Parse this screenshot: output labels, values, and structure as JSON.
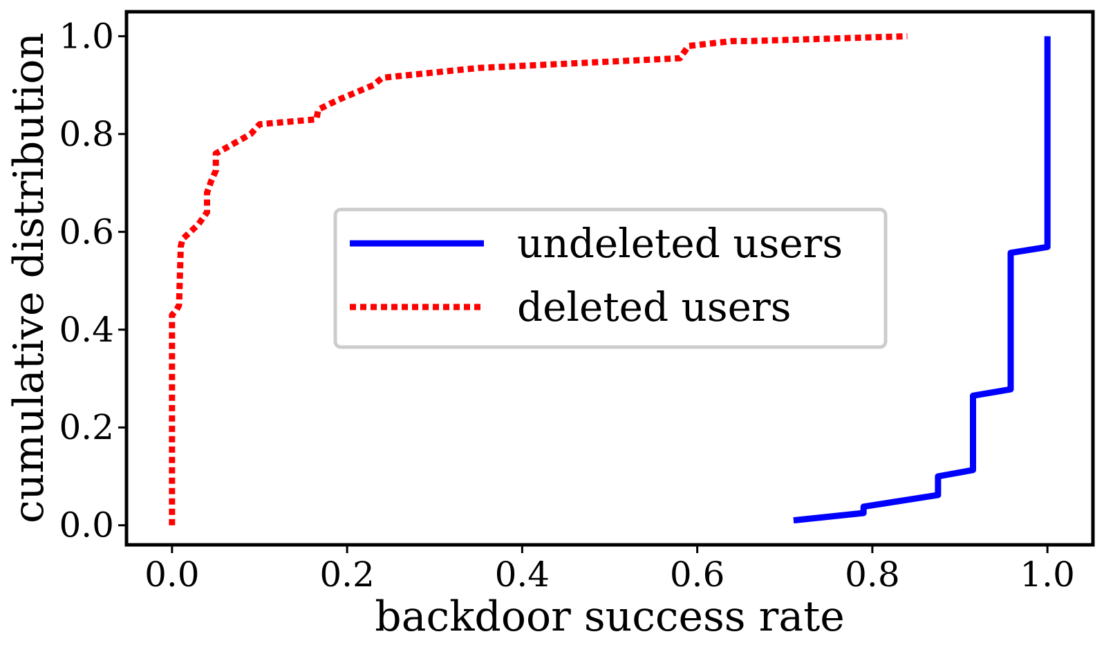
{
  "chart_data": {
    "type": "line",
    "title": "",
    "xlabel": "backdoor success rate",
    "ylabel": "cumulative distribution",
    "xlim": [
      -0.052,
      1.052
    ],
    "ylim": [
      -0.04,
      1.05
    ],
    "xticks": [
      0.0,
      0.2,
      0.4,
      0.6,
      0.8,
      1.0
    ],
    "xtick_labels": [
      "0.0",
      "0.2",
      "0.4",
      "0.6",
      "0.8",
      "1.0"
    ],
    "yticks": [
      0.0,
      0.2,
      0.4,
      0.6,
      0.8,
      1.0
    ],
    "ytick_labels": [
      "0.0",
      "0.2",
      "0.4",
      "0.6",
      "0.8",
      "1.0"
    ],
    "grid": false,
    "legend_position": "center",
    "series": [
      {
        "name": "undeleted users",
        "color": "#0000ff",
        "style": "solid",
        "x": [
          0.71,
          0.79,
          0.79,
          0.875,
          0.875,
          0.915,
          0.915,
          0.958,
          0.958,
          1.0,
          1.0
        ],
        "y": [
          0.01,
          0.025,
          0.038,
          0.062,
          0.1,
          0.113,
          0.265,
          0.278,
          0.557,
          0.569,
          1.0
        ]
      },
      {
        "name": "deleted users",
        "color": "#ff0000",
        "style": "dotted",
        "x": [
          0.0,
          0.0,
          0.005,
          0.008,
          0.01,
          0.012,
          0.03,
          0.04,
          0.04,
          0.045,
          0.05,
          0.05,
          0.07,
          0.09,
          0.1,
          0.165,
          0.167,
          0.19,
          0.23,
          0.24,
          0.35,
          0.58,
          0.59,
          0.64,
          0.66,
          0.84
        ],
        "y": [
          0.0,
          0.43,
          0.44,
          0.45,
          0.57,
          0.585,
          0.615,
          0.64,
          0.68,
          0.705,
          0.725,
          0.76,
          0.78,
          0.8,
          0.82,
          0.83,
          0.85,
          0.87,
          0.9,
          0.915,
          0.935,
          0.955,
          0.98,
          0.99,
          0.99,
          1.0
        ]
      }
    ]
  }
}
